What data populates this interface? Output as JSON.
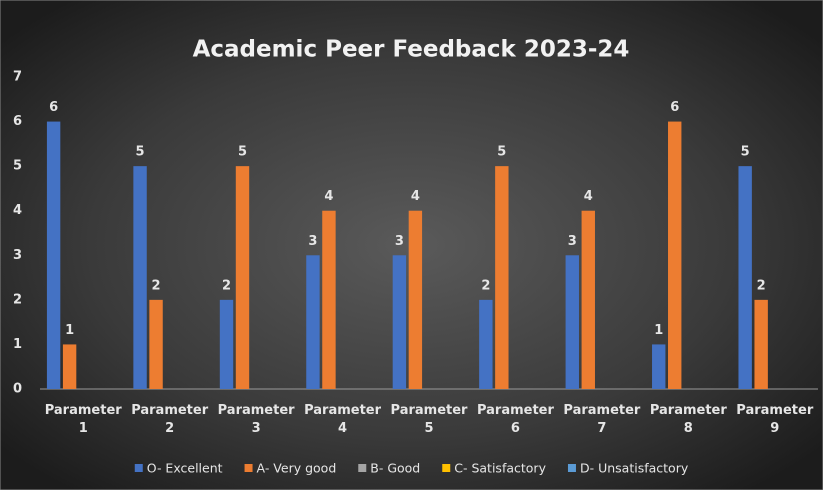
{
  "chart_data": {
    "type": "bar",
    "title": "Academic Peer Feedback 2023-24",
    "categories": [
      "Parameter 1",
      "Parameter 2",
      "Parameter 3",
      "Parameter 4",
      "Parameter 5",
      "Parameter 6",
      "Parameter 7",
      "Parameter 8",
      "Parameter 9"
    ],
    "series": [
      {
        "name": "O- Excellent",
        "color": "#4472c4",
        "values": [
          6,
          5,
          2,
          3,
          3,
          2,
          3,
          1,
          5
        ]
      },
      {
        "name": "A- Very good",
        "color": "#ed7d31",
        "values": [
          1,
          2,
          5,
          4,
          4,
          5,
          4,
          6,
          2
        ]
      },
      {
        "name": "B- Good",
        "color": "#a5a5a5",
        "values": [
          null,
          null,
          null,
          null,
          null,
          null,
          null,
          null,
          null
        ]
      },
      {
        "name": "C- Satisfactory",
        "color": "#ffc000",
        "values": [
          null,
          null,
          null,
          null,
          null,
          null,
          null,
          null,
          null
        ]
      },
      {
        "name": "D- Unsatisfactory",
        "color": "#5b9bd5",
        "values": [
          null,
          null,
          null,
          null,
          null,
          null,
          null,
          null,
          null
        ]
      }
    ],
    "ylim": [
      0,
      7
    ],
    "yticks": [
      0,
      1,
      2,
      3,
      4,
      5,
      6,
      7
    ],
    "grid": false,
    "legend": "bottom"
  }
}
